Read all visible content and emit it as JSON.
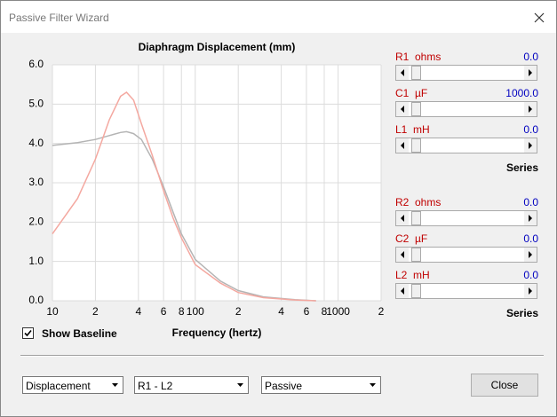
{
  "window": {
    "title": "Passive Filter Wizard"
  },
  "chart_data": {
    "type": "line",
    "title": "Diaphragm Displacement (mm)",
    "x_label": "Frequency (hertz)",
    "x": [
      10,
      15,
      20,
      25,
      30,
      33,
      37,
      42,
      50,
      60,
      70,
      80,
      100,
      150,
      200,
      300,
      500,
      700
    ],
    "series": [
      {
        "color": "#b4b4b4",
        "values": [
          3.95,
          4.02,
          4.1,
          4.2,
          4.28,
          4.3,
          4.25,
          4.1,
          3.6,
          2.9,
          2.25,
          1.7,
          1.05,
          0.5,
          0.26,
          0.1,
          0.03,
          0
        ]
      },
      {
        "color": "#f4a8a0",
        "values": [
          1.7,
          2.6,
          3.6,
          4.6,
          5.2,
          5.3,
          5.1,
          4.5,
          3.7,
          2.8,
          2.1,
          1.6,
          0.92,
          0.45,
          0.21,
          0.08,
          0.02,
          0
        ]
      }
    ],
    "log_x": true,
    "xlim": [
      10,
      2000
    ],
    "xticks": [
      10,
      {
        "value": 20,
        "label": "2"
      },
      {
        "value": 40,
        "label": "4"
      },
      {
        "value": 60,
        "label": "6"
      },
      {
        "value": 80,
        "label": "8"
      },
      100,
      {
        "value": 200,
        "label": "2"
      },
      {
        "value": 400,
        "label": "4"
      },
      {
        "value": 600,
        "label": "6"
      },
      {
        "value": 800,
        "label": "8"
      },
      1000,
      {
        "value": 2000,
        "label": "2"
      }
    ],
    "ylim": [
      0,
      6
    ],
    "yticks": [
      {
        "value": 0,
        "label": "0.0"
      },
      {
        "value": 1,
        "label": "1.0"
      },
      {
        "value": 2,
        "label": "2.0"
      },
      {
        "value": 3,
        "label": "3.0"
      },
      {
        "value": 4,
        "label": "4.0"
      },
      {
        "value": 5,
        "label": "5.0"
      },
      {
        "value": 6,
        "label": "6.0"
      }
    ],
    "grid": true
  },
  "sliders": [
    {
      "label": "R1  ohms",
      "value": "0.0"
    },
    {
      "label": "C1  µF",
      "value": "1000.0"
    },
    {
      "label": "L1  mH",
      "value": "0.0"
    },
    {
      "label": "R2  ohms",
      "value": "0.0"
    },
    {
      "label": "C2  µF",
      "value": "0.0"
    },
    {
      "label": "L2  mH",
      "value": "0.0"
    }
  ],
  "series_labels": [
    "Series",
    "Series"
  ],
  "checkbox": "Show Baseline",
  "dropdowns": [
    "Displacement",
    "R1 - L2",
    "Passive"
  ],
  "button": "Close"
}
